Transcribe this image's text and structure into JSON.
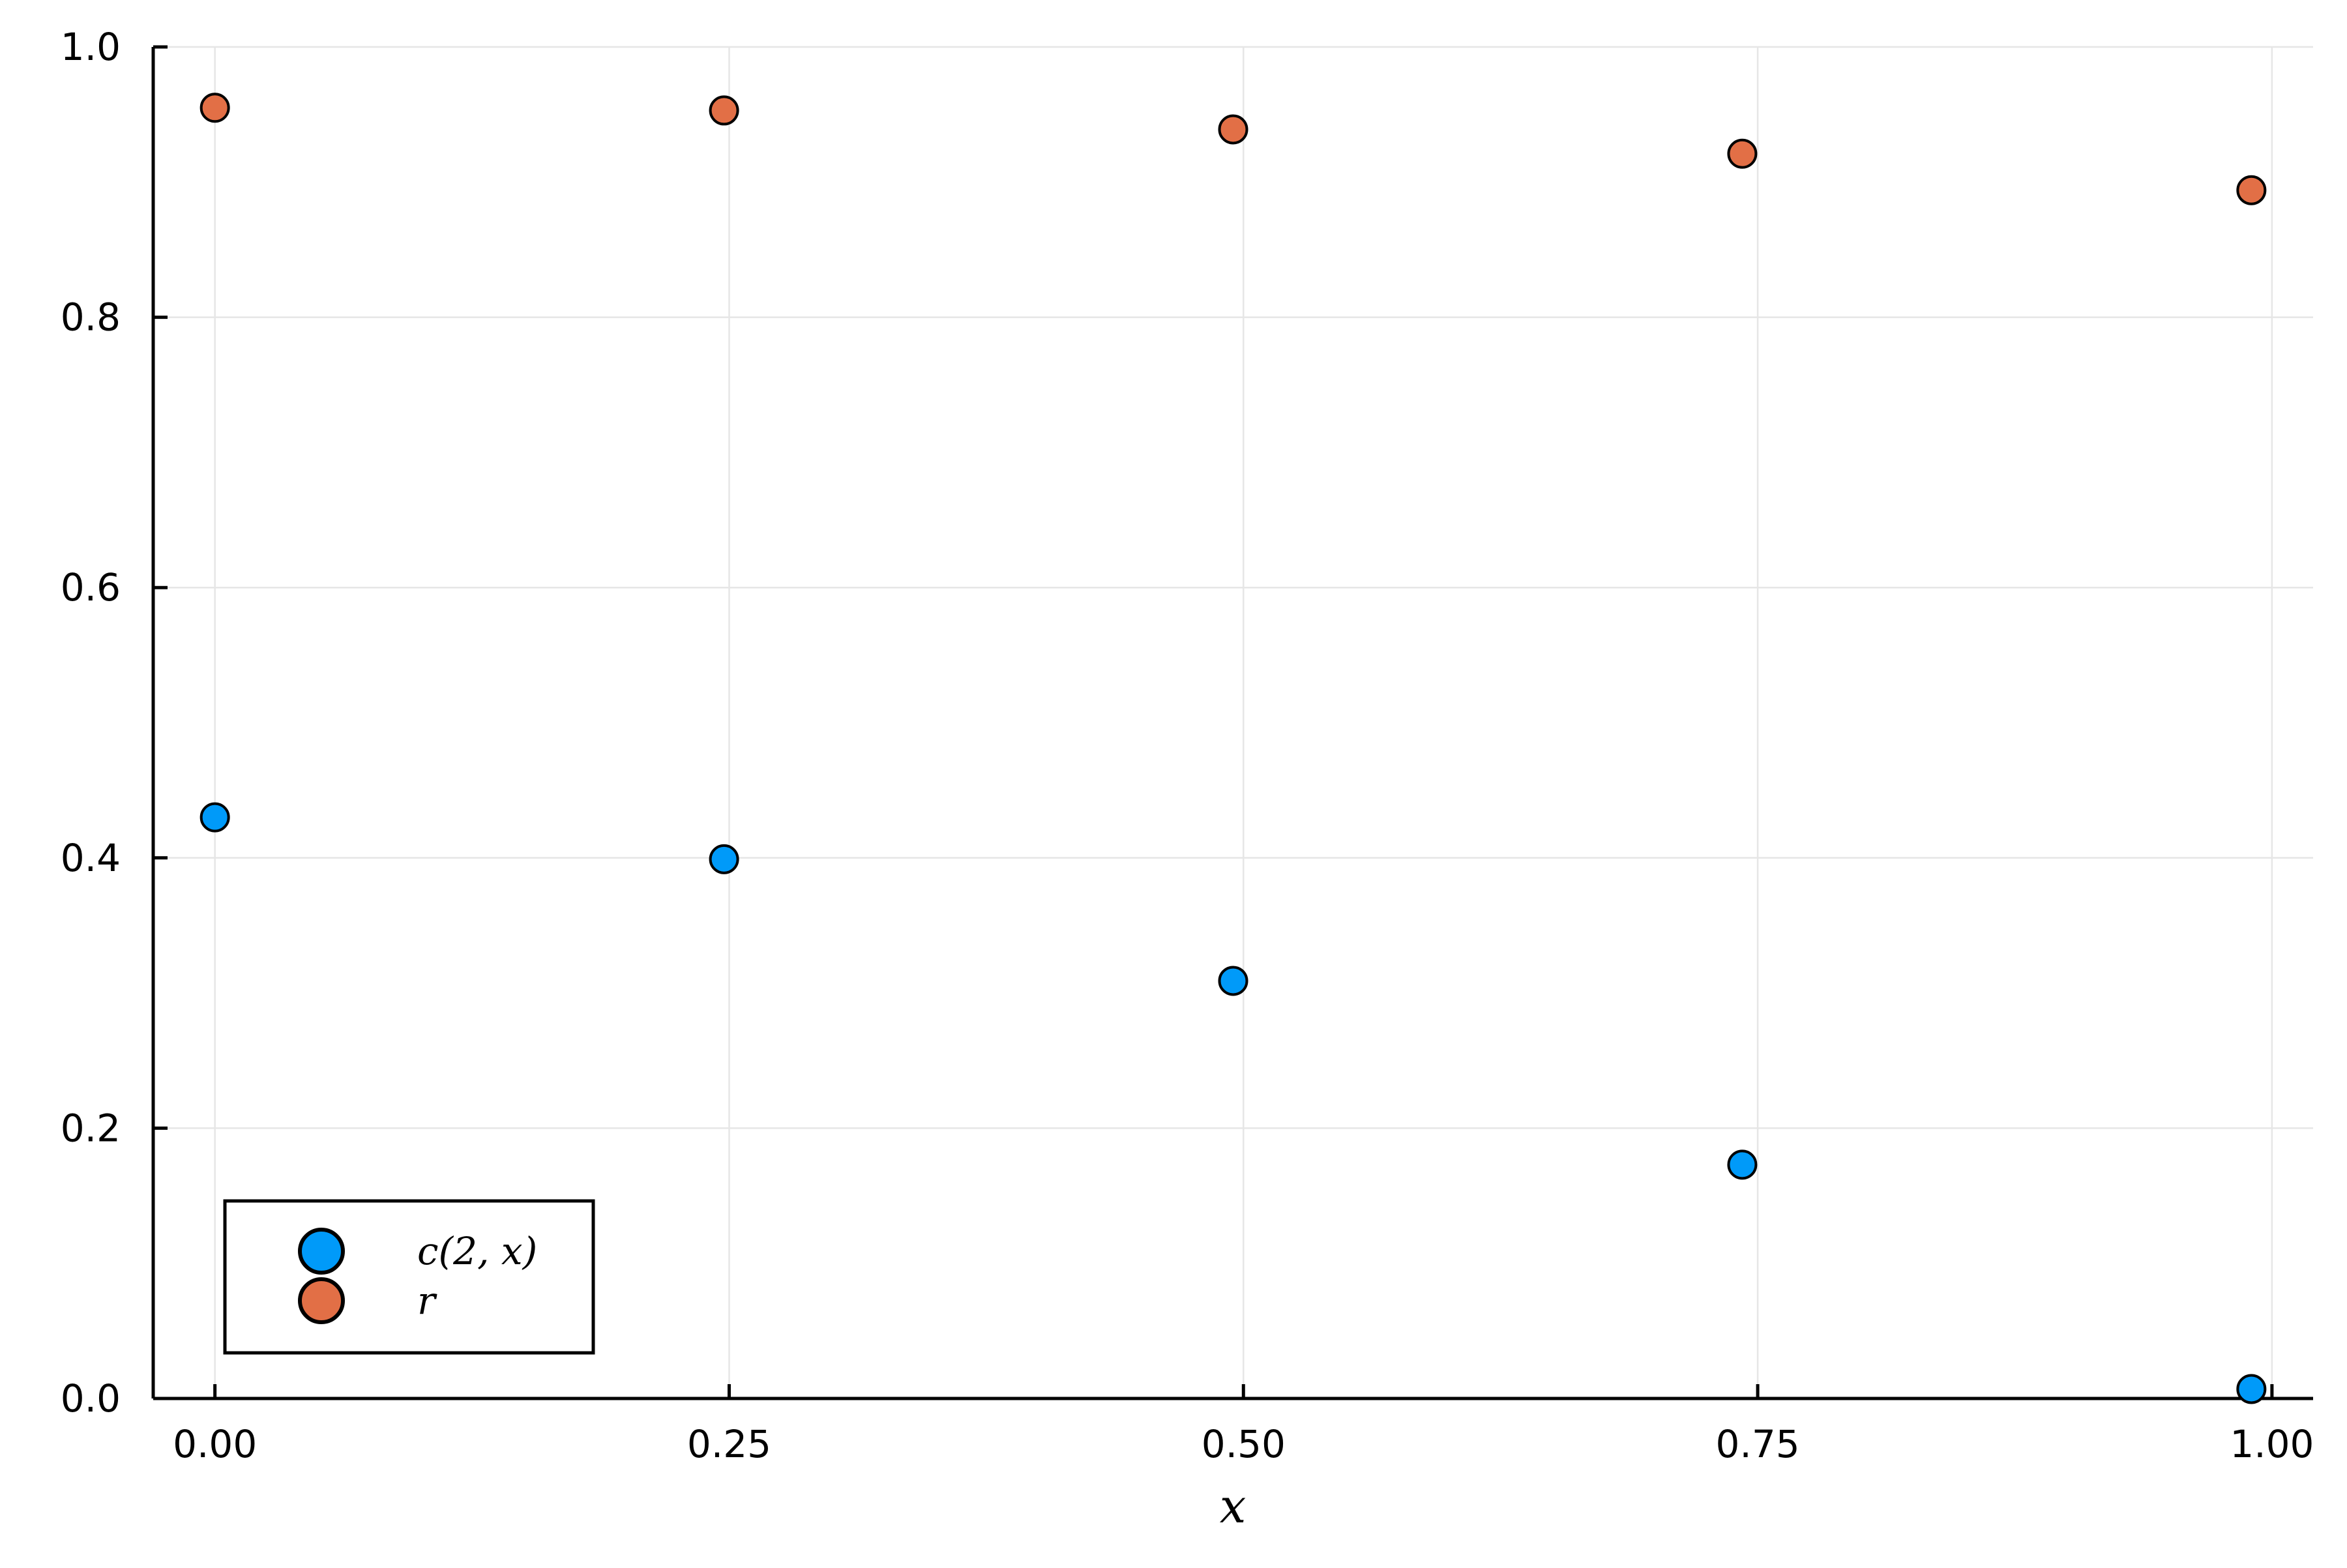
{
  "chart_data": {
    "type": "scatter",
    "xlabel": "x",
    "ylabel": "",
    "xlim": [
      -0.03,
      1.02
    ],
    "ylim": [
      0,
      1
    ],
    "xticks": [
      0.0,
      0.25,
      0.5,
      0.75,
      1.0
    ],
    "xtick_labels": [
      "0.00",
      "0.25",
      "0.50",
      "0.75",
      "1.00"
    ],
    "yticks": [
      0.0,
      0.2,
      0.4,
      0.6,
      0.8,
      1.0
    ],
    "ytick_labels": [
      "0.0",
      "0.2",
      "0.4",
      "0.6",
      "0.8",
      "1.0"
    ],
    "grid": true,
    "legend_position": "bottom-left",
    "series": [
      {
        "name": "c(2, x)",
        "color": "#009af9",
        "x": [
          0.0,
          0.2475,
          0.495,
          0.7425,
          0.99
        ],
        "y": [
          0.43,
          0.399,
          0.309,
          0.173,
          0.007
        ]
      },
      {
        "name": "r",
        "color": "#e26f46",
        "x": [
          0.0,
          0.2475,
          0.495,
          0.7425,
          0.99
        ],
        "y": [
          0.955,
          0.953,
          0.939,
          0.921,
          0.894
        ]
      }
    ]
  }
}
